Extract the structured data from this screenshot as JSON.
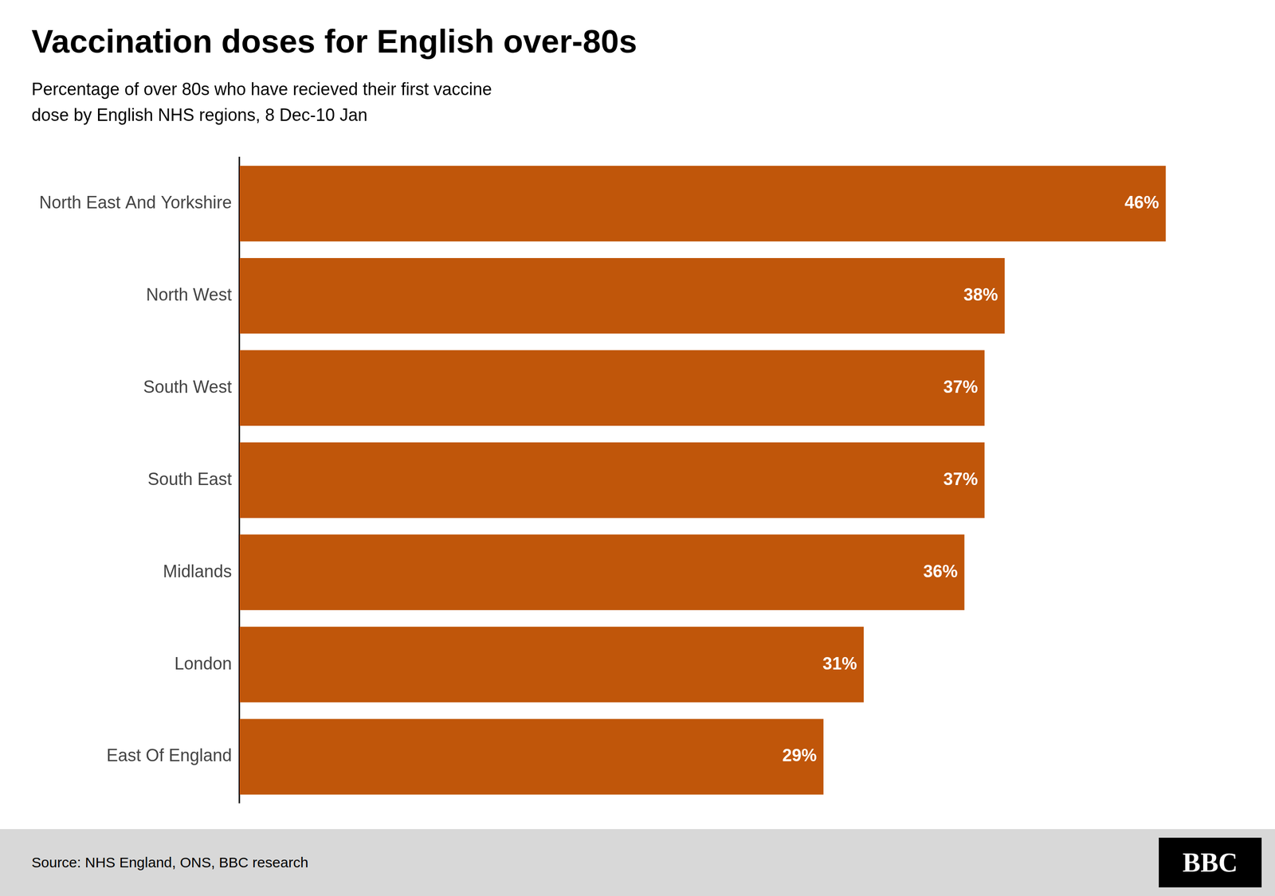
{
  "chart_data": {
    "type": "bar",
    "orientation": "horizontal",
    "title": "Vaccination doses for English over-80s",
    "subtitle": "Percentage of over 80s who have recieved their first vaccine\ndose by English NHS regions, 8 Dec-10 Jan",
    "categories": [
      "North East And Yorkshire",
      "North West",
      "South West",
      "South East",
      "Midlands",
      "London",
      "East Of England"
    ],
    "values": [
      46,
      38,
      37,
      37,
      36,
      31,
      29
    ],
    "value_labels": [
      "46%",
      "38%",
      "37%",
      "37%",
      "36%",
      "31%",
      "29%"
    ],
    "data_labels": true,
    "color": "#c0560a",
    "xlim": [
      0,
      50
    ],
    "tick_labels": "y",
    "grid": false,
    "annotations": [
      "Source: NHS England, ONS, BBC research",
      "BBC"
    ]
  }
}
